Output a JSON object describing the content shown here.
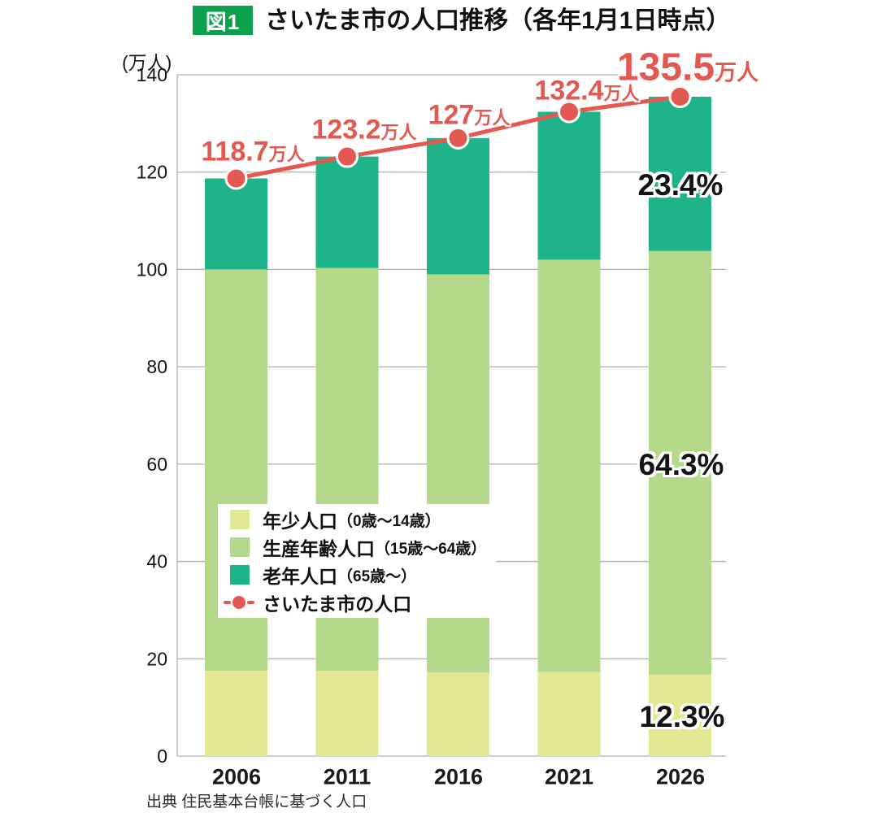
{
  "header": {
    "badge": "図1"
  },
  "source": "出典 住民基本台帳に基づく人口",
  "colors": {
    "badge_green": "#0ca24d",
    "grid_gray": "#b0b0b0",
    "label_black": "#141414"
  },
  "chart_data": {
    "type": "bar",
    "subtype": "stacked-bar-with-line",
    "title": "さいたま市の人口推移（各年1月1日時点）",
    "unit_label": "(万人)",
    "categories": [
      "2006",
      "2011",
      "2016",
      "2021",
      "2026"
    ],
    "series": [
      {
        "name": "年少人口（0歳～14歳）",
        "color": "#e4e893",
        "values": [
          17.5,
          17.5,
          17.2,
          17.3,
          16.7
        ]
      },
      {
        "name": "生産年齢人口（15歳～64歳）",
        "color": "#b5d98b",
        "values": [
          82.5,
          82.8,
          81.8,
          84.7,
          87.1
        ]
      },
      {
        "name": "老年人口（65歳～）",
        "color": "#1fb38a",
        "values": [
          18.7,
          22.9,
          28.0,
          30.4,
          31.7
        ]
      }
    ],
    "line": {
      "name": "さいたま市の人口",
      "color": "#e45852",
      "values": [
        118.7,
        123.2,
        127,
        132.4,
        135.5
      ],
      "labels": [
        "118.7",
        "123.2",
        "127",
        "132.4",
        "135.5"
      ],
      "label_unit": "万人"
    },
    "percent_labels": [
      {
        "text": "23.4%",
        "applies_to": "老年人口（65歳～）"
      },
      {
        "text": "64.3%",
        "applies_to": "生産年齢人口（15歳～64歳）"
      },
      {
        "text": "12.3%",
        "applies_to": "年少人口（0歳～14歳）"
      }
    ],
    "legend": [
      {
        "name": "年少人口",
        "range": "（0歳～14歳）",
        "swatch": 0
      },
      {
        "name": "生産年齢人口",
        "range": "（15歳～64歳）",
        "swatch": 1
      },
      {
        "name": "老年人口",
        "range": "（65歳～）",
        "swatch": 2
      },
      {
        "name": "さいたま市の人口",
        "range": "",
        "marker": "line-dot"
      }
    ],
    "ylim": [
      0,
      140
    ],
    "yticks": [
      0,
      20,
      40,
      60,
      80,
      100,
      120,
      140
    ],
    "grid": true,
    "legend_position": "inside-lower-left"
  }
}
